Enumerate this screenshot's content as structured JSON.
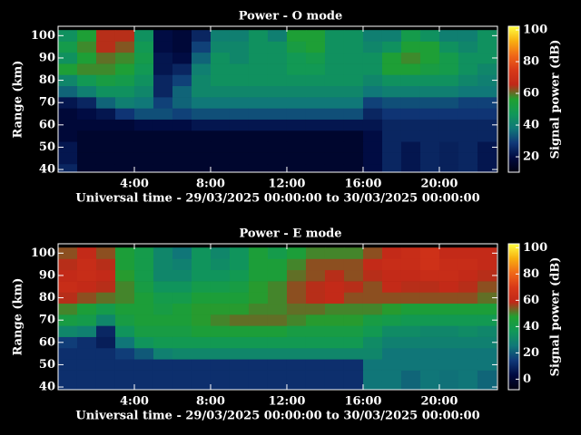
{
  "chart_data": [
    {
      "type": "heatmap",
      "title": "Power - O mode",
      "xlabel": "Universal time - 29/03/2025 00:00:00 to 30/03/2025 00:00:00",
      "ylabel": "Range (km)",
      "colorbar_label": "Signal power (dB)",
      "x": [
        0.5,
        1.5,
        2.5,
        3.5,
        4.5,
        5.5,
        6.5,
        7.5,
        8.5,
        9.5,
        10.5,
        11.5,
        12.5,
        13.5,
        14.5,
        15.5,
        16.5,
        17.5,
        18.5,
        19.5,
        20.5,
        21.5,
        22.5
      ],
      "y": [
        40,
        45,
        50,
        55,
        60,
        65,
        70,
        75,
        80,
        85,
        90,
        95,
        100
      ],
      "z": [
        [
          25,
          16,
          16,
          16,
          16,
          16,
          16,
          16,
          16,
          16,
          16,
          16,
          16,
          16,
          16,
          16,
          20,
          25,
          22,
          25,
          24,
          25,
          22
        ],
        [
          22,
          16,
          16,
          16,
          16,
          16,
          16,
          16,
          16,
          16,
          16,
          16,
          16,
          16,
          16,
          16,
          20,
          25,
          22,
          25,
          24,
          25,
          22
        ],
        [
          22,
          16,
          16,
          16,
          16,
          16,
          16,
          16,
          16,
          16,
          16,
          16,
          16,
          16,
          16,
          16,
          20,
          25,
          22,
          25,
          24,
          25,
          22
        ],
        [
          18,
          16,
          16,
          16,
          16,
          16,
          16,
          16,
          16,
          16,
          16,
          16,
          16,
          16,
          16,
          16,
          20,
          25,
          25,
          25,
          25,
          25,
          25
        ],
        [
          18,
          18,
          18,
          18,
          20,
          20,
          20,
          22,
          22,
          22,
          22,
          22,
          22,
          22,
          22,
          22,
          22,
          25,
          25,
          25,
          25,
          25,
          25
        ],
        [
          18,
          20,
          22,
          28,
          32,
          32,
          30,
          32,
          32,
          32,
          32,
          32,
          32,
          32,
          32,
          32,
          25,
          28,
          28,
          28,
          28,
          28,
          28
        ],
        [
          22,
          25,
          35,
          40,
          38,
          30,
          35,
          38,
          38,
          38,
          38,
          38,
          38,
          38,
          38,
          38,
          30,
          32,
          32,
          32,
          32,
          30,
          30
        ],
        [
          35,
          40,
          45,
          45,
          42,
          25,
          35,
          42,
          42,
          42,
          42,
          42,
          42,
          42,
          42,
          42,
          38,
          40,
          40,
          40,
          40,
          38,
          38
        ],
        [
          42,
          48,
          52,
          50,
          45,
          25,
          30,
          42,
          45,
          45,
          45,
          45,
          45,
          45,
          45,
          45,
          42,
          45,
          45,
          45,
          45,
          42,
          40
        ],
        [
          55,
          58,
          58,
          55,
          48,
          22,
          25,
          40,
          45,
          45,
          45,
          45,
          48,
          48,
          45,
          45,
          45,
          55,
          55,
          52,
          50,
          45,
          42
        ],
        [
          45,
          55,
          60,
          58,
          50,
          22,
          20,
          35,
          45,
          42,
          45,
          45,
          48,
          50,
          45,
          45,
          45,
          55,
          58,
          55,
          50,
          45,
          45
        ],
        [
          50,
          58,
          65,
          62,
          48,
          20,
          18,
          30,
          42,
          42,
          45,
          45,
          52,
          55,
          45,
          45,
          42,
          45,
          55,
          55,
          45,
          42,
          45
        ],
        [
          45,
          55,
          65,
          65,
          45,
          20,
          18,
          25,
          40,
          40,
          45,
          40,
          55,
          55,
          45,
          45,
          40,
          40,
          50,
          45,
          40,
          40,
          45
        ]
      ],
      "xlim": [
        0,
        23.05
      ],
      "ylim": [
        38.8,
        104.2
      ],
      "xticks": [
        {
          "value": 4,
          "label": "4:00"
        },
        {
          "value": 8,
          "label": "8:00"
        },
        {
          "value": 12,
          "label": "12:00"
        },
        {
          "value": 16,
          "label": "16:00"
        },
        {
          "value": 20,
          "label": "20:00"
        }
      ],
      "yticks": [
        40,
        50,
        60,
        70,
        80,
        90,
        100
      ],
      "zlim": [
        10.3,
        102.3
      ],
      "zticks": [
        20,
        40,
        60,
        80,
        100
      ],
      "colorscale": [
        "#000010",
        "#000a40",
        "#103878",
        "#107878",
        "#109858",
        "#20a030",
        "#c02818",
        "#d83818",
        "#f06818",
        "#f8b010",
        "#ffff40"
      ]
    },
    {
      "type": "heatmap",
      "title": "Power - E mode",
      "xlabel": "Universal time - 29/03/2025 00:00:00 to 30/03/2025 00:00:00",
      "ylabel": "Range (km)",
      "colorbar_label": "Signal power (dB)",
      "x": [
        0.5,
        1.5,
        2.5,
        3.5,
        4.5,
        5.5,
        6.5,
        7.5,
        8.5,
        9.5,
        10.5,
        11.5,
        12.5,
        13.5,
        14.5,
        15.5,
        16.5,
        17.5,
        18.5,
        19.5,
        20.5,
        21.5,
        22.5
      ],
      "y": [
        40,
        45,
        50,
        55,
        60,
        65,
        70,
        75,
        80,
        85,
        90,
        95,
        100
      ],
      "z": [
        [
          12,
          12,
          12,
          12,
          12,
          12,
          12,
          12,
          12,
          12,
          12,
          12,
          12,
          12,
          12,
          12,
          25,
          25,
          22,
          25,
          24,
          25,
          22
        ],
        [
          12,
          12,
          12,
          12,
          12,
          12,
          12,
          12,
          12,
          12,
          12,
          12,
          12,
          12,
          12,
          12,
          25,
          25,
          22,
          25,
          24,
          25,
          22
        ],
        [
          12,
          12,
          12,
          12,
          12,
          12,
          12,
          12,
          12,
          12,
          12,
          12,
          12,
          12,
          12,
          12,
          25,
          25,
          25,
          25,
          25,
          25,
          25
        ],
        [
          12,
          12,
          12,
          15,
          20,
          28,
          30,
          30,
          30,
          30,
          30,
          30,
          30,
          30,
          30,
          30,
          30,
          25,
          25,
          25,
          25,
          25,
          25
        ],
        [
          15,
          12,
          8,
          25,
          35,
          38,
          38,
          38,
          38,
          38,
          38,
          38,
          38,
          38,
          38,
          38,
          32,
          28,
          28,
          28,
          28,
          28,
          28
        ],
        [
          30,
          28,
          10,
          35,
          42,
          42,
          42,
          45,
          45,
          45,
          45,
          45,
          42,
          42,
          42,
          42,
          38,
          32,
          32,
          30,
          30,
          32,
          30
        ],
        [
          42,
          40,
          30,
          42,
          45,
          45,
          45,
          48,
          50,
          52,
          52,
          52,
          50,
          48,
          48,
          48,
          42,
          40,
          38,
          38,
          38,
          38,
          38
        ],
        [
          50,
          45,
          40,
          45,
          45,
          42,
          45,
          48,
          48,
          48,
          50,
          50,
          52,
          52,
          50,
          50,
          50,
          48,
          45,
          45,
          45,
          45,
          45
        ],
        [
          58,
          55,
          52,
          50,
          45,
          40,
          40,
          45,
          45,
          45,
          48,
          50,
          55,
          58,
          60,
          55,
          55,
          55,
          55,
          55,
          55,
          55,
          52
        ],
        [
          62,
          60,
          58,
          50,
          42,
          35,
          35,
          40,
          40,
          42,
          48,
          50,
          55,
          58,
          60,
          58,
          55,
          60,
          58,
          58,
          60,
          58,
          55
        ],
        [
          60,
          62,
          60,
          48,
          40,
          30,
          30,
          35,
          35,
          38,
          45,
          45,
          52,
          55,
          58,
          55,
          58,
          60,
          60,
          62,
          62,
          60,
          58
        ],
        [
          58,
          62,
          58,
          45,
          40,
          30,
          28,
          35,
          32,
          35,
          45,
          45,
          50,
          55,
          55,
          55,
          60,
          62,
          62,
          65,
          62,
          62,
          60
        ],
        [
          55,
          60,
          55,
          45,
          40,
          30,
          25,
          35,
          30,
          35,
          45,
          40,
          45,
          50,
          50,
          50,
          55,
          60,
          62,
          65,
          60,
          60,
          60
        ]
      ],
      "xlim": [
        0,
        23.05
      ],
      "ylim": [
        38.8,
        104.2
      ],
      "xticks": [
        {
          "value": 4,
          "label": "4:00"
        },
        {
          "value": 8,
          "label": "8:00"
        },
        {
          "value": 12,
          "label": "12:00"
        },
        {
          "value": 16,
          "label": "16:00"
        },
        {
          "value": 20,
          "label": "20:00"
        }
      ],
      "yticks": [
        40,
        50,
        60,
        70,
        80,
        90,
        100
      ],
      "zlim": [
        -8,
        103
      ],
      "zticks": [
        0,
        20,
        40,
        60,
        80,
        100
      ],
      "colorscale": [
        "#000010",
        "#000a40",
        "#103878",
        "#107878",
        "#109858",
        "#20a030",
        "#c02818",
        "#d83818",
        "#f06818",
        "#f8b010",
        "#ffff40"
      ]
    }
  ]
}
